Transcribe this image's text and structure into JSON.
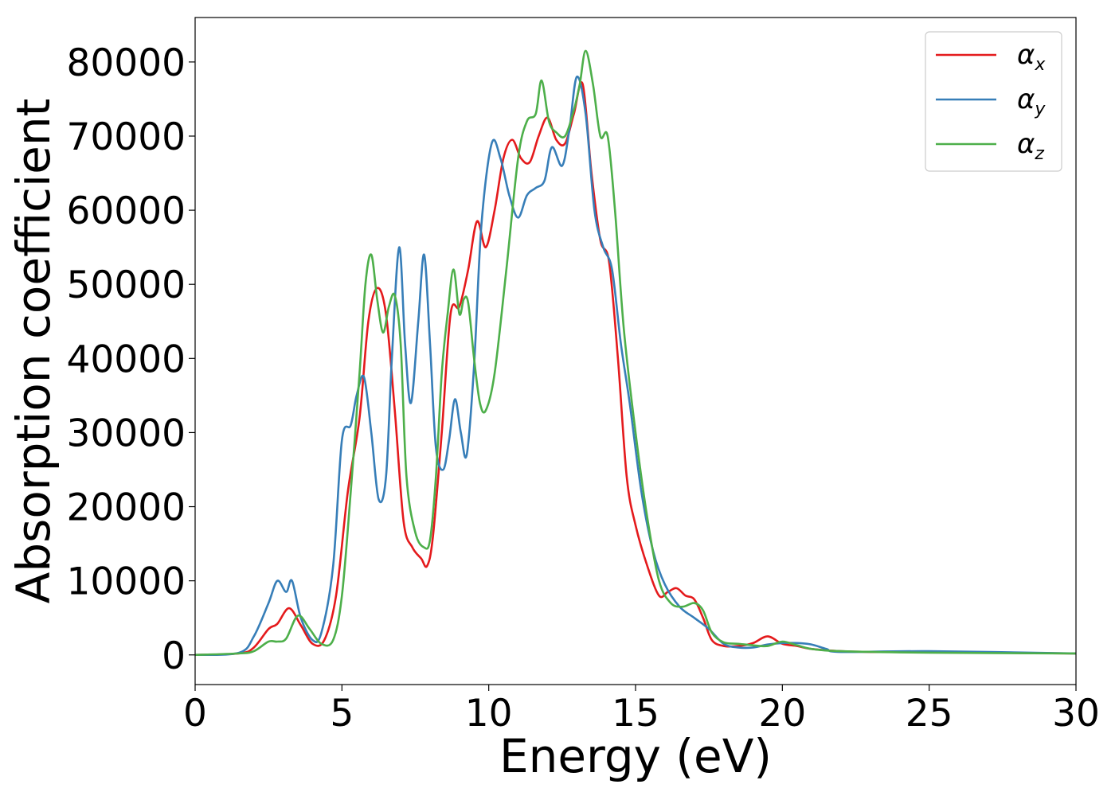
{
  "chart_data": {
    "type": "line",
    "xlabel": "Energy (eV)",
    "ylabel": "Absorption coefficient",
    "xlim": [
      0,
      30
    ],
    "ylim": [
      -4000,
      86000
    ],
    "xticks": [
      0,
      5,
      10,
      15,
      20,
      25,
      30
    ],
    "yticks": [
      0,
      10000,
      20000,
      30000,
      40000,
      50000,
      60000,
      70000,
      80000
    ],
    "grid": false,
    "legend_position": "top-right",
    "series": [
      {
        "name": "α_x",
        "symbol": "α",
        "subscript": "x",
        "color": "#e41a1c",
        "x": [
          0,
          1.5,
          2.0,
          2.5,
          2.8,
          3.2,
          3.6,
          4.0,
          4.4,
          4.8,
          5.2,
          5.6,
          5.9,
          6.2,
          6.5,
          6.8,
          7.1,
          7.4,
          7.7,
          7.9,
          8.1,
          8.4,
          8.7,
          9.0,
          9.3,
          9.6,
          9.9,
          10.2,
          10.5,
          10.8,
          11.1,
          11.4,
          11.7,
          12.0,
          12.3,
          12.6,
          12.9,
          13.2,
          13.5,
          13.8,
          14.1,
          14.4,
          14.7,
          15.0,
          15.4,
          15.8,
          16.1,
          16.4,
          16.7,
          17.0,
          17.3,
          17.6,
          18.0,
          18.5,
          19.0,
          19.5,
          20.0,
          20.5,
          21.0,
          22.0,
          23.0,
          25.0,
          27.0,
          30.0
        ],
        "y": [
          0,
          200,
          1000,
          3500,
          4200,
          6300,
          4000,
          1500,
          2000,
          8000,
          22000,
          32000,
          45000,
          49500,
          46000,
          33000,
          18000,
          14500,
          13000,
          12000,
          16000,
          30000,
          46000,
          47000,
          52000,
          58500,
          55000,
          60000,
          67000,
          69500,
          67000,
          66500,
          70000,
          72500,
          69500,
          69000,
          73000,
          77000,
          65000,
          56000,
          53000,
          40000,
          24000,
          17500,
          12000,
          8000,
          8500,
          9000,
          8000,
          7500,
          5000,
          2000,
          1200,
          1200,
          1600,
          2500,
          1500,
          1200,
          800,
          500,
          400,
          400,
          300,
          200
        ]
      },
      {
        "name": "α_y",
        "symbol": "α",
        "subscript": "y",
        "color": "#377eb8",
        "x": [
          0,
          1.5,
          2.0,
          2.5,
          2.8,
          3.1,
          3.3,
          3.6,
          4.0,
          4.3,
          4.7,
          5.0,
          5.3,
          5.5,
          5.75,
          6.0,
          6.25,
          6.5,
          6.7,
          6.95,
          7.15,
          7.35,
          7.6,
          7.8,
          8.0,
          8.2,
          8.45,
          8.65,
          8.85,
          9.05,
          9.25,
          9.5,
          9.75,
          10.1,
          10.4,
          10.7,
          11.0,
          11.3,
          11.6,
          11.9,
          12.15,
          12.5,
          12.75,
          13.0,
          13.3,
          13.6,
          13.9,
          14.2,
          14.5,
          14.8,
          15.2,
          15.6,
          16.0,
          16.5,
          17.0,
          17.5,
          18.0,
          18.5,
          19.0,
          19.5,
          20.0,
          20.5,
          21.0,
          21.5,
          22.0,
          25.0,
          30.0
        ],
        "y": [
          0,
          300,
          2500,
          7000,
          10000,
          8500,
          10000,
          5000,
          2000,
          3000,
          12000,
          29000,
          31000,
          35000,
          37500,
          30000,
          21000,
          24000,
          40000,
          55000,
          42000,
          34000,
          45000,
          54000,
          42000,
          28000,
          25000,
          29000,
          34500,
          30000,
          27000,
          39000,
          58000,
          69000,
          67000,
          62000,
          59000,
          62000,
          63000,
          64000,
          68500,
          66000,
          71000,
          78000,
          73000,
          60000,
          55000,
          52000,
          42000,
          34000,
          22000,
          14000,
          9500,
          6500,
          5000,
          3500,
          1500,
          1000,
          1000,
          1400,
          1600,
          1600,
          1400,
          800,
          400,
          500,
          200
        ]
      },
      {
        "name": "α_z",
        "symbol": "α",
        "subscript": "z",
        "color": "#4daf4a",
        "x": [
          0,
          1.5,
          2.0,
          2.5,
          2.8,
          3.1,
          3.5,
          3.9,
          4.3,
          4.7,
          5.0,
          5.3,
          5.6,
          5.8,
          6.0,
          6.2,
          6.4,
          6.6,
          6.8,
          7.0,
          7.2,
          7.5,
          7.8,
          8.0,
          8.2,
          8.4,
          8.6,
          8.8,
          9.0,
          9.15,
          9.3,
          9.5,
          9.7,
          9.9,
          10.2,
          10.6,
          11.0,
          11.3,
          11.6,
          11.8,
          12.05,
          12.3,
          12.6,
          12.9,
          13.1,
          13.3,
          13.55,
          13.8,
          14.05,
          14.3,
          14.6,
          15.0,
          15.4,
          15.8,
          16.2,
          16.6,
          17.0,
          17.3,
          17.6,
          18.0,
          18.5,
          19.0,
          19.5,
          20.0,
          20.5,
          21.0,
          22.0,
          25.0,
          30.0
        ],
        "y": [
          0,
          200,
          500,
          1800,
          1800,
          2200,
          5300,
          3500,
          1500,
          2000,
          8000,
          22000,
          38000,
          50000,
          54000,
          48000,
          43500,
          47000,
          48500,
          42000,
          24000,
          16500,
          14500,
          15500,
          24000,
          38000,
          46000,
          52000,
          46000,
          48000,
          47500,
          40000,
          34000,
          33000,
          38000,
          52000,
          67000,
          72000,
          73000,
          77500,
          72000,
          70500,
          70000,
          73500,
          77000,
          81500,
          77000,
          70000,
          70000,
          60000,
          44000,
          30000,
          18500,
          10000,
          7000,
          6500,
          7000,
          6000,
          3000,
          1700,
          1500,
          1300,
          1200,
          1800,
          1300,
          800,
          500,
          300,
          200
        ]
      }
    ]
  }
}
